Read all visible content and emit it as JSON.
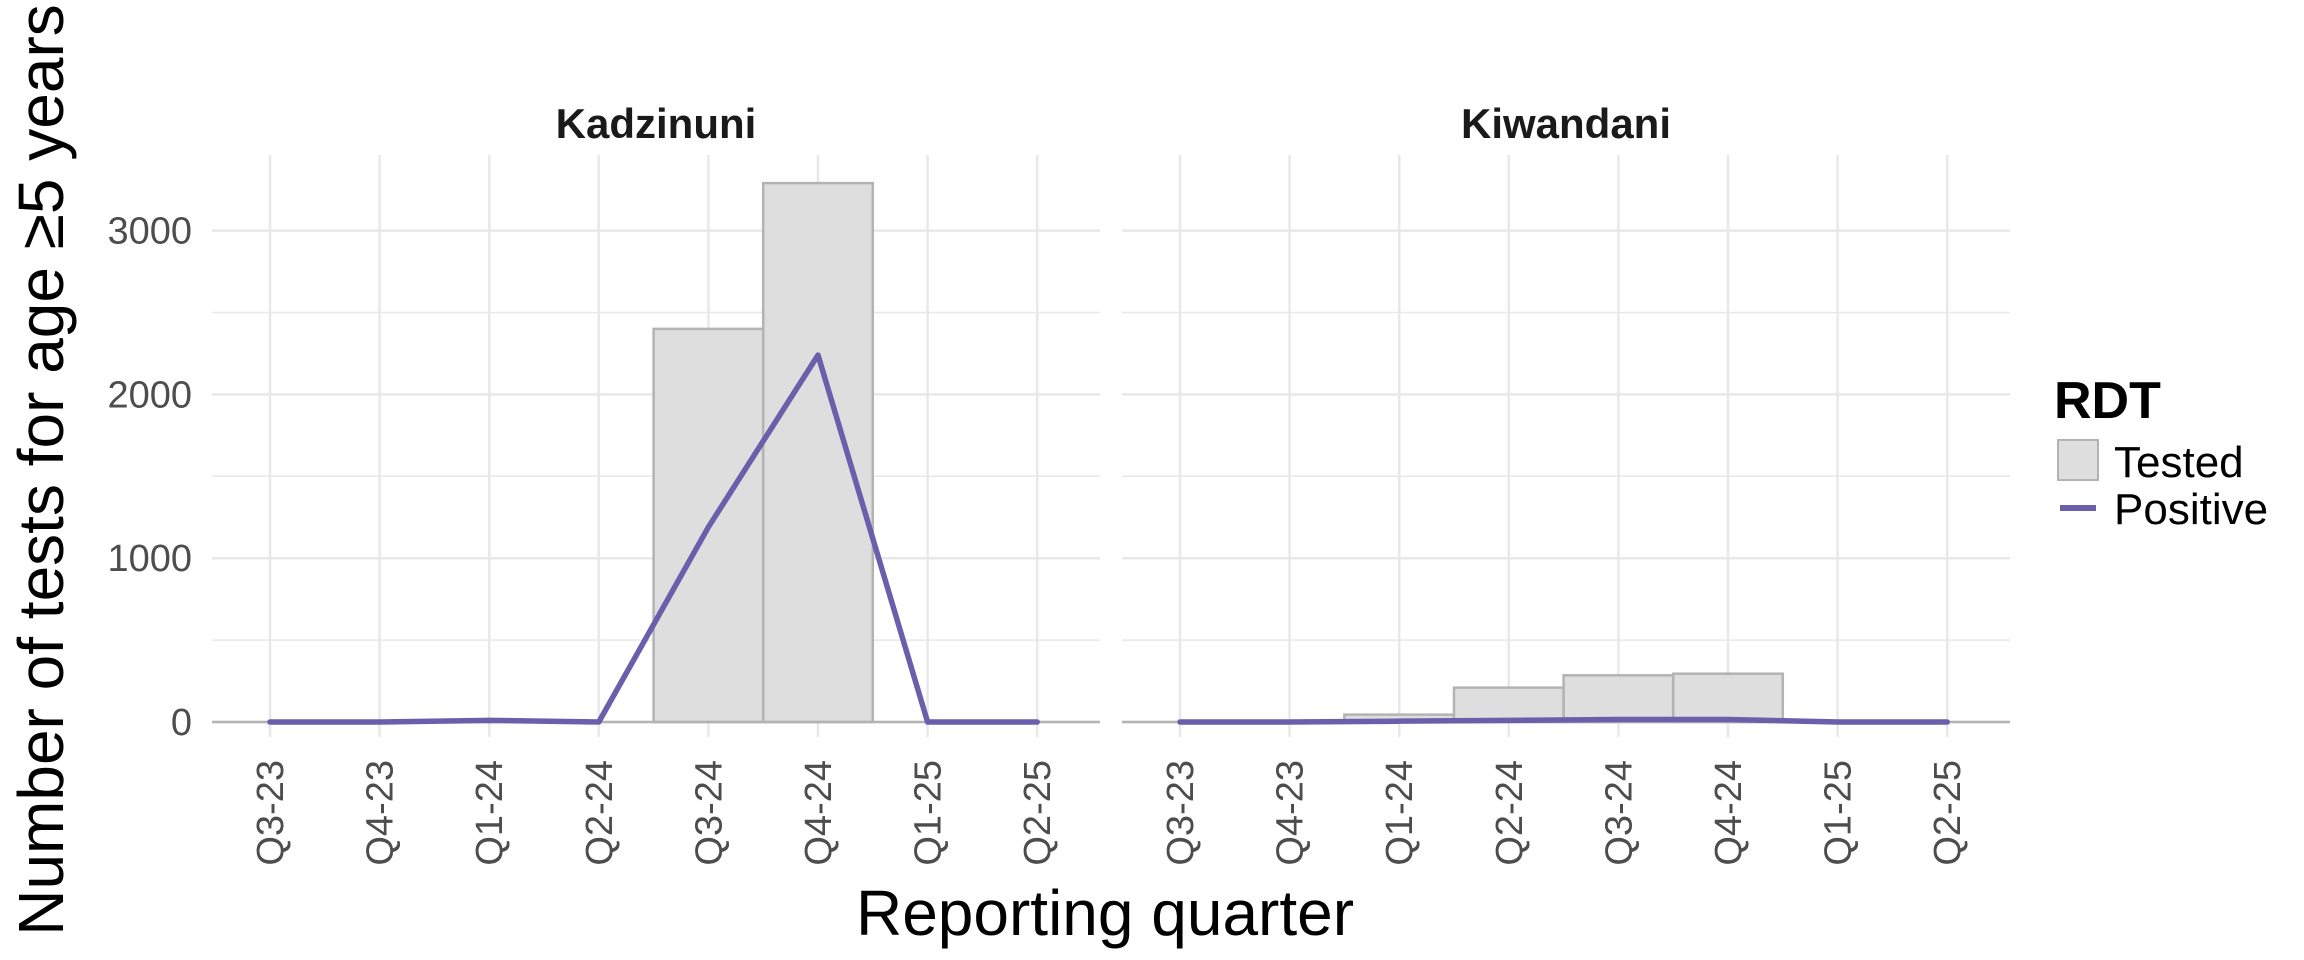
{
  "chart_data": {
    "type": "bar",
    "xlabel": "Reporting quarter",
    "ylabel": "Number of tests for age ≥5 years",
    "ylim": [
      -150,
      3450
    ],
    "yticks": [
      0,
      1000,
      2000,
      3000
    ],
    "categories": [
      "Q3-23",
      "Q4-23",
      "Q1-24",
      "Q2-24",
      "Q3-24",
      "Q4-24",
      "Q1-25",
      "Q2-25"
    ],
    "grid": true,
    "legend": {
      "title": "RDT",
      "placement": "right",
      "items": [
        {
          "label": "Tested",
          "kind": "bar"
        },
        {
          "label": "Positive",
          "kind": "line"
        }
      ]
    },
    "colors": {
      "bar_fill": "#dedede",
      "bar_stroke": "#b3b3b3",
      "line": "#6a5fab",
      "grid": "#e8e8e8"
    },
    "panels": [
      {
        "title": "Kadzinuni",
        "series": [
          {
            "name": "Tested",
            "type": "bar",
            "values": [
              0,
              0,
              0,
              0,
              2400,
              3290,
              0,
              0
            ]
          },
          {
            "name": "Positive",
            "type": "line",
            "values": [
              0,
              0,
              10,
              0,
              1190,
              2240,
              0,
              0
            ]
          }
        ]
      },
      {
        "title": "Kiwandani",
        "series": [
          {
            "name": "Tested",
            "type": "bar",
            "values": [
              0,
              0,
              45,
              210,
              285,
              295,
              0,
              0
            ]
          },
          {
            "name": "Positive",
            "type": "line",
            "values": [
              0,
              0,
              5,
              10,
              15,
              15,
              0,
              0
            ]
          }
        ]
      }
    ]
  }
}
